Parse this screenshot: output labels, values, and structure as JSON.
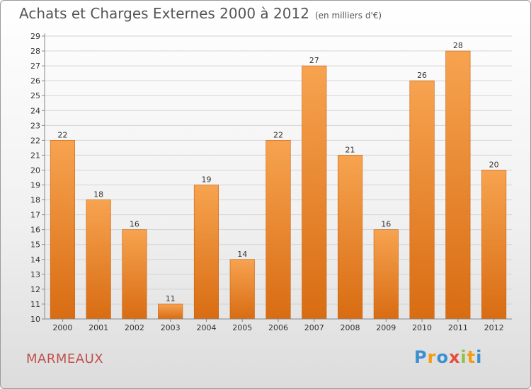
{
  "header": {
    "title": "Achats et Charges Externes 2000 à 2012",
    "subtitle": "(en milliers d'€)"
  },
  "footer": {
    "commune": "MARMEAUX",
    "logo": [
      "P",
      "r",
      "o",
      "x",
      "i",
      "t",
      "i"
    ],
    "logo_colors": [
      "#3c8fd0",
      "#f39c12",
      "#3c8fd0",
      "#e74c3c",
      "#8bc34a",
      "#f39c12",
      "#3c8fd0"
    ]
  },
  "colors": {
    "bar_top": "#f7a350",
    "bar_bottom": "#d86c12",
    "bar_stroke": "#c9600e",
    "grid": "#d4d4d4",
    "axis": "#888888"
  },
  "chart_data": {
    "type": "bar",
    "title": "Achats et Charges Externes 2000 à 2012",
    "subtitle": "(en milliers d'€)",
    "categories": [
      "2000",
      "2001",
      "2002",
      "2003",
      "2004",
      "2005",
      "2006",
      "2007",
      "2008",
      "2009",
      "2010",
      "2011",
      "2012"
    ],
    "values": [
      22,
      18,
      16,
      11,
      19,
      14,
      22,
      27,
      21,
      16,
      26,
      28,
      20
    ],
    "ylim": [
      10,
      29
    ],
    "yticks": [
      10,
      11,
      12,
      13,
      14,
      15,
      16,
      17,
      18,
      19,
      20,
      21,
      22,
      23,
      24,
      25,
      26,
      27,
      28,
      29
    ],
    "grid": true,
    "xlabel": "",
    "ylabel": ""
  }
}
